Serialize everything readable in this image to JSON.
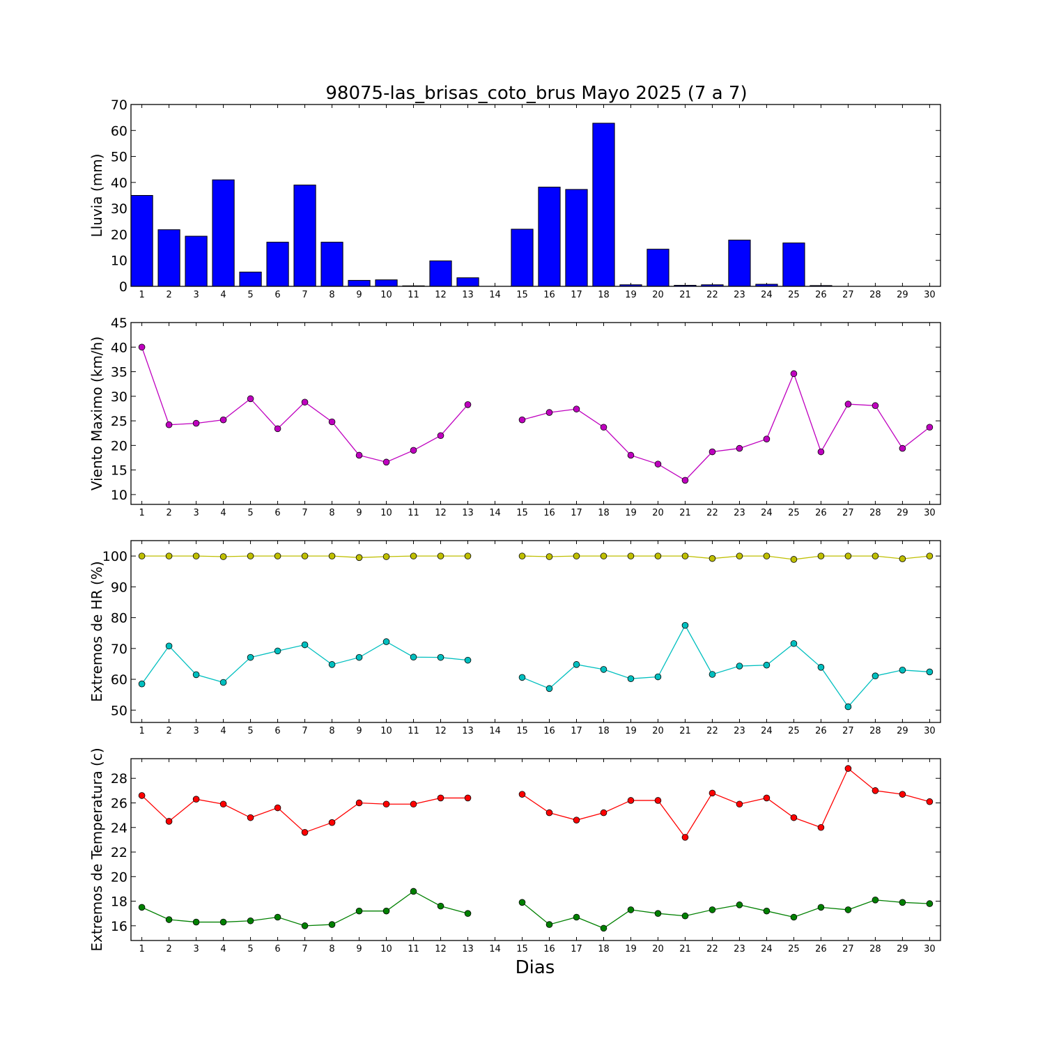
{
  "chart_data": {
    "title": "98075-las_brisas_coto_brus Mayo 2025  (7 a 7)",
    "xlabel": "Dias",
    "days": [
      1,
      2,
      3,
      4,
      5,
      6,
      7,
      8,
      9,
      10,
      11,
      12,
      13,
      14,
      15,
      16,
      17,
      18,
      19,
      20,
      21,
      22,
      23,
      24,
      25,
      26,
      27,
      28,
      29,
      30
    ],
    "panels": [
      {
        "type": "bar",
        "ylabel": "Lluvia (mm)",
        "ylim": [
          0,
          70
        ],
        "yticks": [
          0,
          10,
          20,
          30,
          40,
          50,
          60,
          70
        ],
        "grid": false,
        "series": [
          {
            "color": "#0000ff",
            "values": [
              35,
              21.8,
              19.3,
              41,
              5.5,
              17,
              39,
              17,
              2.3,
              2.5,
              0.2,
              9.8,
              3.3,
              null,
              22,
              38.2,
              37.3,
              62.8,
              0.6,
              14.3,
              0.4,
              0.6,
              17.8,
              0.8,
              16.7,
              0.3,
              0,
              0,
              0,
              0
            ]
          }
        ]
      },
      {
        "type": "line",
        "ylabel": "Viento Maximo (km/h)",
        "ylim": [
          8,
          45
        ],
        "yticks": [
          10,
          15,
          20,
          25,
          30,
          35,
          40,
          45
        ],
        "grid": false,
        "series": [
          {
            "color": "#bf00bf",
            "values": [
              40,
              24.2,
              24.5,
              25.2,
              29.5,
              23.4,
              28.8,
              24.8,
              18,
              16.6,
              19,
              22,
              28.3,
              null,
              25.2,
              26.7,
              27.4,
              23.7,
              18,
              16.2,
              12.9,
              18.7,
              19.4,
              21.3,
              34.6,
              18.7,
              28.4,
              28.1,
              19.4,
              23.7
            ]
          }
        ]
      },
      {
        "type": "line",
        "ylabel": "Extremos de HR (%)",
        "ylim": [
          46,
          105
        ],
        "yticks": [
          50,
          60,
          70,
          80,
          90,
          100
        ],
        "grid": false,
        "series": [
          {
            "color": "#bfbf00",
            "values": [
              100,
              100,
              100,
              99.8,
              100,
              100,
              100,
              100,
              99.5,
              99.8,
              100,
              100,
              100,
              null,
              100,
              99.8,
              100,
              100,
              100,
              100,
              100,
              99.2,
              100,
              100,
              98.9,
              100,
              100,
              100,
              99.1,
              100
            ]
          },
          {
            "color": "#00bfbf",
            "values": [
              58.5,
              70.8,
              61.5,
              59,
              67.1,
              69.2,
              71.2,
              64.8,
              67.1,
              72.2,
              67.2,
              67.1,
              66.2,
              null,
              60.6,
              57,
              64.8,
              63.2,
              60.2,
              60.8,
              77.5,
              61.6,
              64.3,
              64.6,
              71.6,
              63.9,
              51.1,
              61.1,
              63,
              62.4
            ]
          }
        ]
      },
      {
        "type": "line",
        "ylabel": "Extremos de Temperatura (c)",
        "ylim": [
          14.8,
          29.6
        ],
        "yticks": [
          16,
          18,
          20,
          22,
          24,
          26,
          28
        ],
        "grid": false,
        "series": [
          {
            "color": "#ff0000",
            "values": [
              26.6,
              24.5,
              26.3,
              25.9,
              24.8,
              25.6,
              23.6,
              24.4,
              26,
              25.9,
              25.9,
              26.4,
              26.4,
              null,
              26.7,
              25.2,
              24.6,
              25.2,
              26.2,
              26.2,
              23.2,
              26.8,
              25.9,
              26.4,
              24.8,
              24,
              28.8,
              27,
              26.7,
              26.1
            ]
          },
          {
            "color": "#008000",
            "values": [
              17.5,
              16.5,
              16.3,
              16.3,
              16.4,
              16.7,
              16,
              16.1,
              17.2,
              17.2,
              18.8,
              17.6,
              17,
              null,
              17.9,
              16.1,
              16.7,
              15.8,
              17.3,
              17,
              16.8,
              17.3,
              17.7,
              17.2,
              16.7,
              17.5,
              17.3,
              18.1,
              17.9,
              17.8
            ]
          }
        ]
      }
    ]
  }
}
